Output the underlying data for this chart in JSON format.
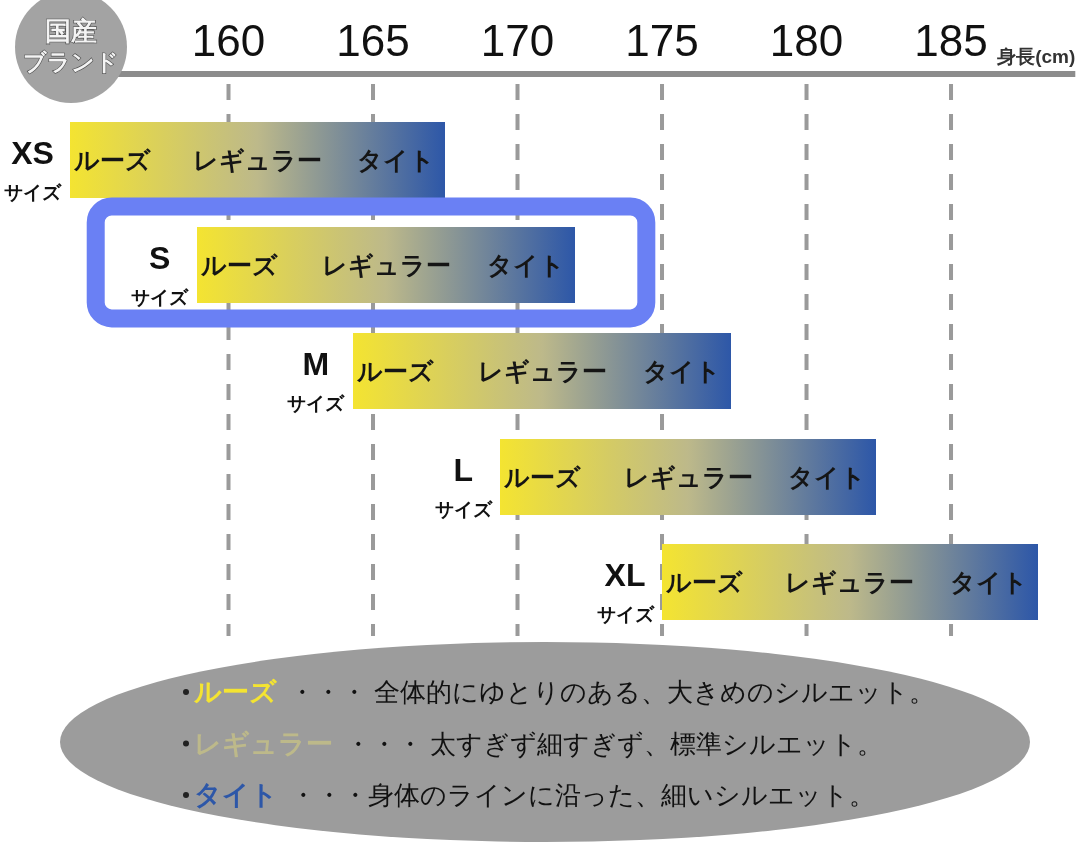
{
  "chart_data": {
    "type": "bar",
    "orientation": "horizontal",
    "title": "国産ブランド",
    "xlabel": "身長(cm)",
    "categories": [
      "XS\nサイズ",
      "S\nサイズ",
      "M\nサイズ",
      "L\nサイズ",
      "XL\nサイズ"
    ],
    "series": [
      {
        "name": "ルーズ",
        "color": "#f4e431",
        "base": [
          154.5,
          158.9,
          164.3,
          169.4,
          175.0
        ],
        "values": [
          4.3,
          4.4,
          4.4,
          4.3,
          4.3
        ]
      },
      {
        "name": "レギュラー",
        "color": "#bdb98a",
        "base": [
          158.8,
          163.3,
          168.7,
          173.7,
          179.3
        ],
        "values": [
          4.4,
          4.3,
          4.3,
          4.4,
          4.4
        ]
      },
      {
        "name": "タイト",
        "color": "#2d57a8",
        "base": [
          163.2,
          167.6,
          173.0,
          178.1,
          183.7
        ],
        "values": [
          4.3,
          4.4,
          4.4,
          4.3,
          4.3
        ]
      }
    ],
    "xlim": [
      154.5,
      189.3
    ],
    "xticks": [
      160,
      165,
      170,
      175,
      180,
      185
    ],
    "grid": "x",
    "legend": "bottom",
    "annotations": [
      "・・・ 全体的にゆとりのある、大きめのシルエット。",
      "・・・ 太すぎず細すぎず、標準シルエット。",
      "・・・身体のラインに沿った、細いシルエット。"
    ]
  }
}
